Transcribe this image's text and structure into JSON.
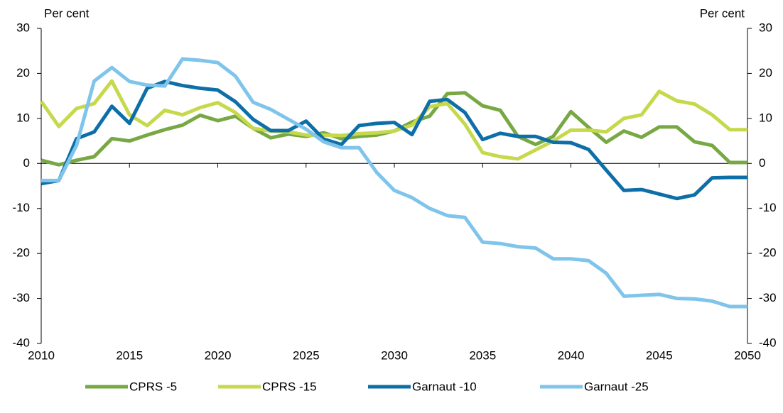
{
  "chart_data": {
    "type": "line",
    "ylabel": "Per cent",
    "y2label": "Per cent",
    "x": [
      2010,
      2011,
      2012,
      2013,
      2014,
      2015,
      2016,
      2017,
      2018,
      2019,
      2020,
      2021,
      2022,
      2023,
      2024,
      2025,
      2026,
      2027,
      2028,
      2029,
      2030,
      2031,
      2032,
      2033,
      2034,
      2035,
      2036,
      2037,
      2038,
      2039,
      2040,
      2041,
      2042,
      2043,
      2044,
      2045,
      2046,
      2047,
      2048,
      2049,
      2050
    ],
    "xlim": [
      2010,
      2050
    ],
    "xticks": [
      2010,
      2015,
      2020,
      2025,
      2030,
      2035,
      2040,
      2045,
      2050
    ],
    "ylim": [
      -40,
      30
    ],
    "yticks": [
      -40,
      -30,
      -20,
      -10,
      0,
      10,
      20,
      30
    ],
    "y2lim": [
      -40,
      30
    ],
    "y2ticks": [
      -40,
      -30,
      -20,
      -10,
      0,
      10,
      20,
      30
    ],
    "grid": false,
    "legend": "bottom",
    "series": [
      {
        "name": "CPRS -5",
        "color": "#77a843",
        "values": [
          0.7,
          -0.3,
          0.7,
          1.5,
          5.5,
          5,
          6.3,
          7.5,
          8.5,
          10.7,
          9.5,
          10.5,
          7.8,
          5.7,
          6.5,
          6,
          6.8,
          5.5,
          6,
          6.3,
          7.2,
          9.2,
          10.5,
          15.5,
          15.7,
          12.8,
          11.8,
          6,
          4.2,
          6,
          11.5,
          8,
          4.7,
          7.2,
          5.8,
          8.1,
          8.1,
          4.8,
          4,
          0.2,
          0.2
        ]
      },
      {
        "name": "CPRS -15",
        "color": "#c6d84b",
        "values": [
          13.8,
          8.2,
          12.2,
          13.3,
          18.3,
          10.8,
          8.4,
          11.8,
          10.8,
          12.4,
          13.5,
          11.3,
          7.8,
          7.2,
          7,
          6.3,
          6.3,
          6.2,
          6.6,
          6.8,
          7.2,
          8.5,
          12.6,
          13.3,
          8.7,
          2.4,
          1.5,
          1,
          3,
          5,
          7.4,
          7.4,
          7,
          10,
          10.8,
          16,
          13.9,
          13.2,
          10.8,
          7.5,
          7.5
        ]
      },
      {
        "name": "Garnaut -10",
        "color": "#0e6fa8",
        "values": [
          -4.5,
          -3.8,
          5.5,
          7,
          12.7,
          8.9,
          16.7,
          18.2,
          17.3,
          16.7,
          16.3,
          13.7,
          9.8,
          7.3,
          7.3,
          9.4,
          5.4,
          4.2,
          8.4,
          8.9,
          9.1,
          6.4,
          13.8,
          14.2,
          11.3,
          5.3,
          6.7,
          6,
          6,
          4.7,
          4.6,
          3.1,
          -1.5,
          -6,
          -5.8,
          -6.8,
          -7.8,
          -7,
          -3.2,
          -3.1,
          -3.1
        ]
      },
      {
        "name": "Garnaut -25",
        "color": "#7fc4ea",
        "values": [
          -3.8,
          -3.8,
          4,
          18.3,
          21.3,
          18.2,
          17.4,
          17.2,
          23.2,
          22.9,
          22.4,
          19.4,
          13.6,
          12,
          9.8,
          7.6,
          4.8,
          3.5,
          3.5,
          -2,
          -6,
          -7.6,
          -10,
          -11.6,
          -12,
          -17.5,
          -17.8,
          -18.5,
          -18.8,
          -21.2,
          -21.2,
          -21.6,
          -24.4,
          -29.5,
          -29.3,
          -29.1,
          -30,
          -30.1,
          -30.6,
          -31.8,
          -31.8
        ]
      }
    ]
  }
}
